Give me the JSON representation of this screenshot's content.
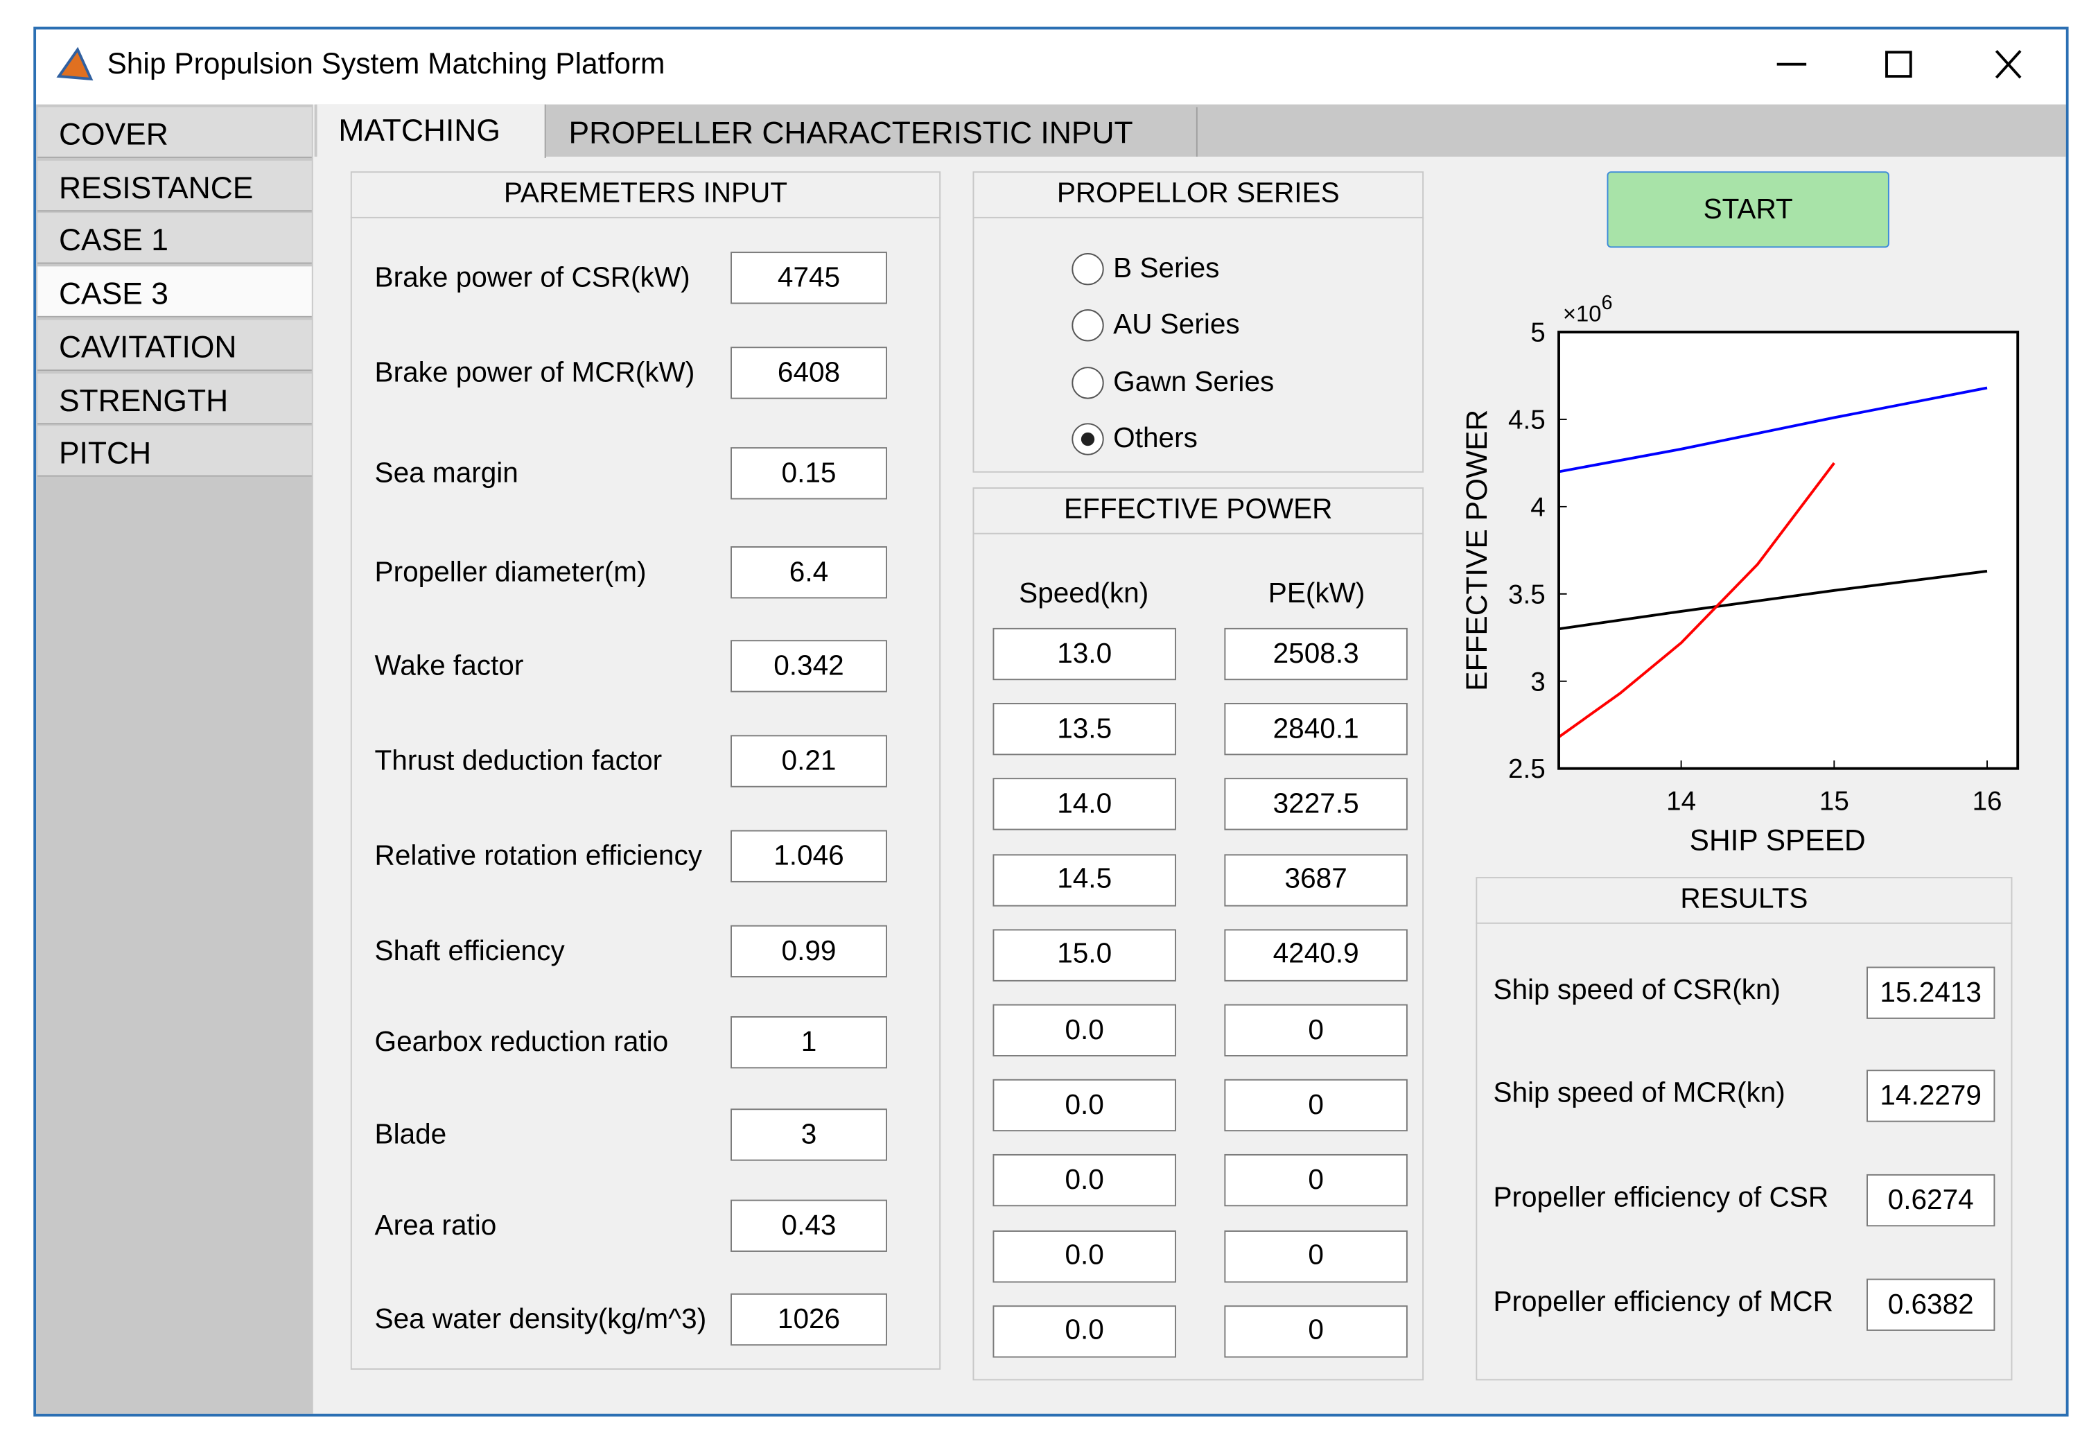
{
  "window": {
    "title": "Ship Propulsion System Matching Platform"
  },
  "sidebar": {
    "items": [
      "COVER",
      "RESISTANCE",
      "CASE 1",
      "CASE 3",
      "CAVITATION",
      "STRENGTH",
      "PITCH"
    ],
    "active": 3
  },
  "tabs": {
    "items": [
      "MATCHING",
      "PROPELLER CHARACTERISTIC INPUT"
    ],
    "active": 0
  },
  "parameters": {
    "title": "PAREMETERS INPUT",
    "rows": [
      {
        "label": "Brake power of CSR(kW)",
        "value": "4745"
      },
      {
        "label": "Brake power of MCR(kW)",
        "value": "6408"
      },
      {
        "label": "Sea margin",
        "value": "0.15"
      },
      {
        "label": "Propeller diameter(m)",
        "value": "6.4"
      },
      {
        "label": "Wake factor",
        "value": "0.342"
      },
      {
        "label": "Thrust deduction factor",
        "value": "0.21"
      },
      {
        "label": "Relative rotation efficiency",
        "value": "1.046"
      },
      {
        "label": "Shaft efficiency",
        "value": "0.99"
      },
      {
        "label": "Gearbox reduction ratio",
        "value": "1"
      },
      {
        "label": "Blade",
        "value": "3"
      },
      {
        "label": "Area ratio",
        "value": "0.43"
      },
      {
        "label": "Sea water density(kg/m^3)",
        "value": "1026"
      }
    ]
  },
  "propeller_series": {
    "title": "PROPELLOR SERIES",
    "options": [
      "B Series",
      "AU Series",
      "Gawn Series",
      "Others"
    ],
    "selected": 3
  },
  "effective_power": {
    "title": "EFFECTIVE POWER",
    "headers": [
      "Speed(kn)",
      "PE(kW)"
    ],
    "rows": [
      [
        "13.0",
        "2508.3"
      ],
      [
        "13.5",
        "2840.1"
      ],
      [
        "14.0",
        "3227.5"
      ],
      [
        "14.5",
        "3687"
      ],
      [
        "15.0",
        "4240.9"
      ],
      [
        "0.0",
        "0"
      ],
      [
        "0.0",
        "0"
      ],
      [
        "0.0",
        "0"
      ],
      [
        "0.0",
        "0"
      ],
      [
        "0.0",
        "0"
      ]
    ]
  },
  "start_button": "START",
  "chart_data": {
    "type": "line",
    "xlabel": "SHIP SPEED",
    "ylabel": "EFFECTIVE POWER",
    "y_multiplier": {
      "base": "×10",
      "power": "6"
    },
    "xlim": [
      13.2,
      16.2
    ],
    "ylim": [
      2.5,
      5
    ],
    "xticks": [
      14,
      15,
      16
    ],
    "yticks": [
      2.5,
      3,
      3.5,
      4,
      4.5,
      5
    ],
    "series": [
      {
        "color": "#0000ff",
        "x": [
          13.2,
          14,
          15,
          16
        ],
        "values": [
          4.2,
          4.33,
          4.51,
          4.68
        ]
      },
      {
        "color": "#000000",
        "x": [
          13.2,
          14,
          15,
          16
        ],
        "values": [
          3.3,
          3.4,
          3.52,
          3.63
        ]
      },
      {
        "color": "#ff0000",
        "x": [
          13.2,
          13.6,
          14,
          14.5,
          15
        ],
        "values": [
          2.68,
          2.93,
          3.22,
          3.67,
          4.25
        ]
      }
    ]
  },
  "results": {
    "title": "RESULTS",
    "rows": [
      {
        "label": "Ship speed of CSR(kn)",
        "value": "15.2413"
      },
      {
        "label": "Ship speed of MCR(kn)",
        "value": "14.2279"
      },
      {
        "label": "Propeller efficiency of CSR",
        "value": "0.6274"
      },
      {
        "label": "Propeller efficiency of MCR",
        "value": "0.6382"
      }
    ]
  }
}
